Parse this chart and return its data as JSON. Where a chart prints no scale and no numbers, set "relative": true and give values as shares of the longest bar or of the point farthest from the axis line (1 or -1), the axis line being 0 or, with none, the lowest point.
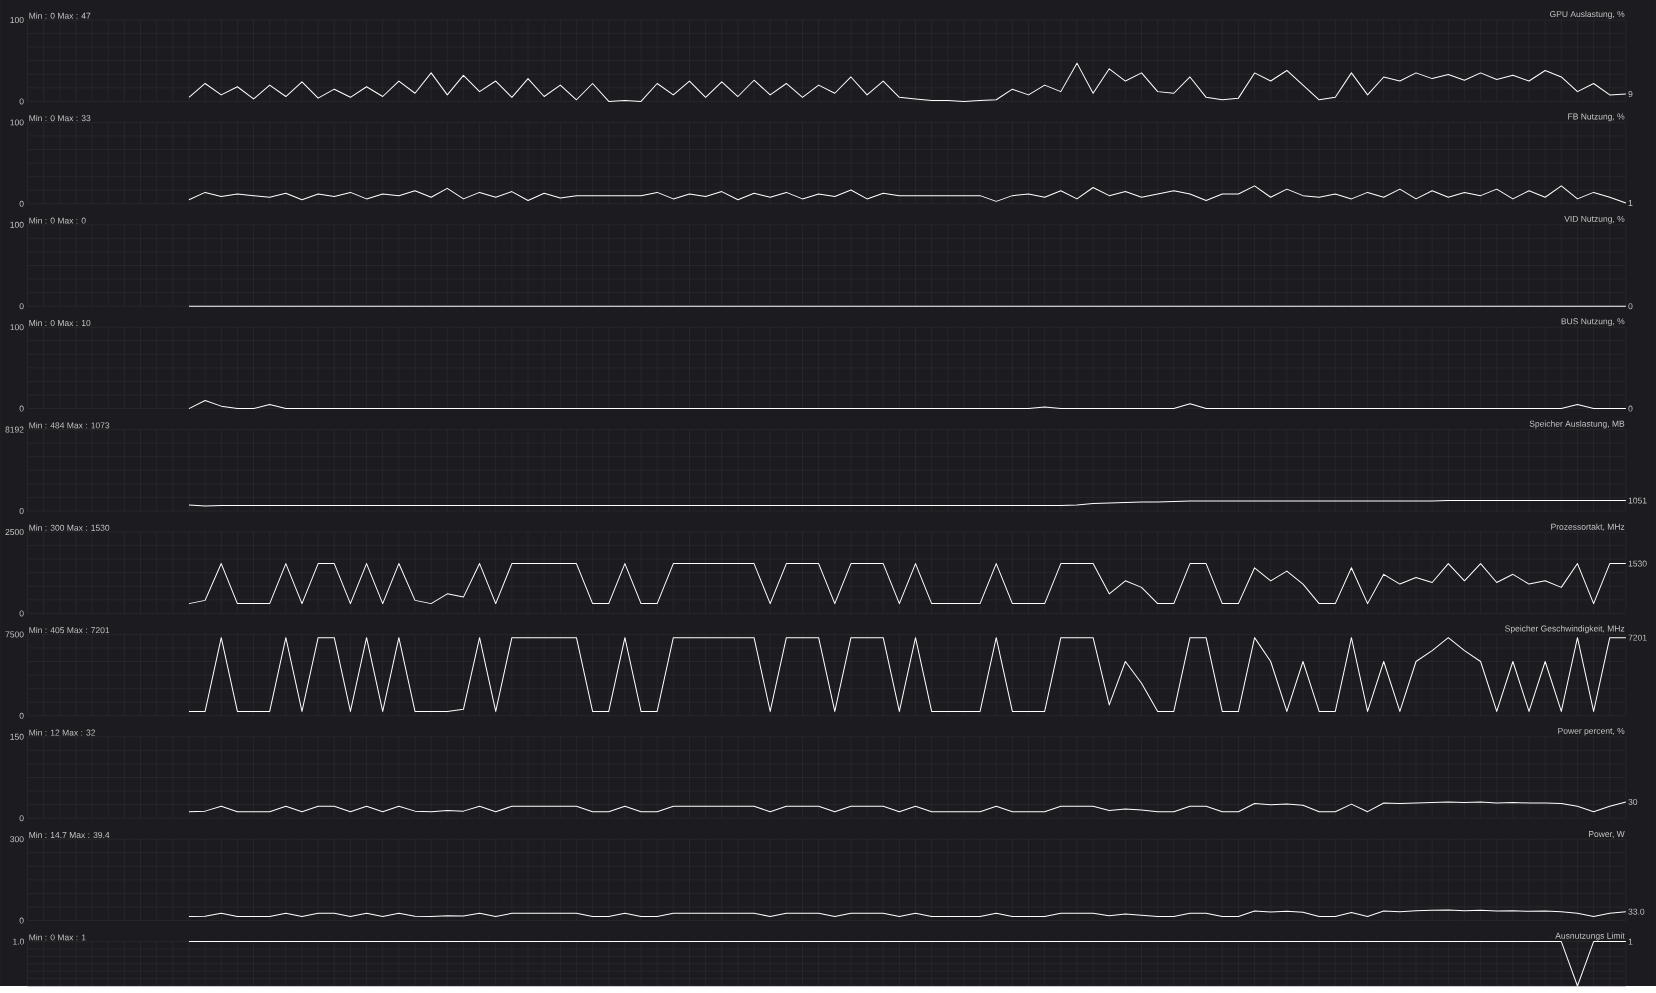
{
  "chart_data": [
    {
      "type": "line",
      "title": "GPU Auslastung, %",
      "color": "#ffffff",
      "ylim": [
        0,
        100
      ],
      "yticks": [
        0,
        100
      ],
      "grid": true,
      "tick_labels": "y",
      "annotations": [
        "Min : 0 Max : 47",
        "9"
      ],
      "categories": [
        null,
        null,
        null,
        null,
        null,
        null,
        null,
        null,
        null,
        null,
        null,
        null,
        null,
        null,
        null,
        null,
        null,
        null,
        null,
        null,
        null,
        null,
        null,
        null,
        null,
        null,
        null,
        null,
        null,
        null,
        null,
        null,
        null,
        null,
        null,
        null,
        null,
        null,
        null,
        null,
        null,
        null,
        null,
        null,
        null,
        null,
        null,
        null,
        null,
        null,
        null,
        null,
        null,
        null,
        null,
        null,
        null,
        null,
        null,
        null,
        null,
        null,
        null,
        null,
        null,
        null,
        null,
        null,
        null,
        null,
        null,
        null,
        null,
        null,
        null,
        null,
        null,
        null,
        null,
        null,
        null,
        null,
        null,
        null,
        null,
        null,
        null,
        null,
        null,
        null,
        null,
        null,
        null,
        null,
        null,
        null,
        null,
        null,
        null,
        null
      ],
      "values": [
        null,
        null,
        null,
        null,
        null,
        null,
        null,
        null,
        null,
        null,
        5,
        22,
        8,
        18,
        3,
        20,
        6,
        24,
        4,
        15,
        5,
        18,
        6,
        25,
        10,
        35,
        8,
        32,
        12,
        25,
        5,
        28,
        6,
        20,
        2,
        22,
        0,
        1,
        0,
        22,
        8,
        25,
        5,
        24,
        6,
        26,
        8,
        22,
        5,
        20,
        10,
        30,
        8,
        25,
        5,
        3,
        1,
        1,
        0,
        1,
        2,
        15,
        8,
        20,
        12,
        47,
        10,
        40,
        25,
        35,
        12,
        10,
        30,
        5,
        2,
        4,
        35,
        25,
        38,
        20,
        2,
        5,
        35,
        8,
        30,
        25,
        35,
        28,
        33,
        26,
        35,
        27,
        32,
        25,
        38,
        30,
        12,
        22,
        8,
        9
      ]
    },
    {
      "type": "line",
      "title": "FB Nutzung, %",
      "color": "#ffffff",
      "ylim": [
        0,
        100
      ],
      "yticks": [
        0,
        100
      ],
      "grid": true,
      "tick_labels": "y",
      "annotations": [
        "Min : 0 Max : 33",
        "1"
      ],
      "categories": [
        null,
        null,
        null,
        null,
        null,
        null,
        null,
        null,
        null,
        null,
        null,
        null,
        null,
        null,
        null,
        null,
        null,
        null,
        null,
        null,
        null,
        null,
        null,
        null,
        null,
        null,
        null,
        null,
        null,
        null,
        null,
        null,
        null,
        null,
        null,
        null,
        null,
        null,
        null,
        null,
        null,
        null,
        null,
        null,
        null,
        null,
        null,
        null,
        null,
        null,
        null,
        null,
        null,
        null,
        null,
        null,
        null,
        null,
        null,
        null,
        null,
        null,
        null,
        null,
        null,
        null,
        null,
        null,
        null,
        null,
        null,
        null,
        null,
        null,
        null,
        null,
        null,
        null,
        null,
        null,
        null,
        null,
        null,
        null,
        null,
        null,
        null,
        null,
        null,
        null,
        null,
        null,
        null,
        null,
        null,
        null,
        null,
        null,
        null,
        null
      ],
      "values": [
        null,
        null,
        null,
        null,
        null,
        null,
        null,
        null,
        null,
        null,
        5,
        14,
        9,
        12,
        10,
        8,
        13,
        5,
        12,
        9,
        14,
        6,
        12,
        10,
        16,
        8,
        19,
        6,
        14,
        8,
        15,
        4,
        13,
        7,
        10,
        10,
        10,
        10,
        10,
        14,
        6,
        12,
        9,
        15,
        5,
        13,
        8,
        14,
        6,
        12,
        9,
        17,
        6,
        13,
        10,
        10,
        10,
        10,
        10,
        10,
        3,
        10,
        12,
        8,
        16,
        6,
        20,
        10,
        15,
        8,
        12,
        16,
        12,
        4,
        12,
        12,
        22,
        8,
        18,
        10,
        8,
        12,
        6,
        14,
        8,
        18,
        6,
        16,
        8,
        14,
        10,
        18,
        6,
        16,
        8,
        22,
        6,
        14,
        8,
        1
      ]
    },
    {
      "type": "line",
      "title": "VID Nutzung, %",
      "color": "#ffffff",
      "ylim": [
        0,
        100
      ],
      "yticks": [
        0,
        100
      ],
      "grid": true,
      "tick_labels": "y",
      "annotations": [
        "Min : 0 Max : 0",
        "0"
      ],
      "categories": [
        null,
        null,
        null,
        null,
        null,
        null,
        null,
        null,
        null,
        null,
        null,
        null,
        null,
        null,
        null,
        null,
        null,
        null,
        null,
        null,
        null,
        null,
        null,
        null,
        null,
        null,
        null,
        null,
        null,
        null,
        null,
        null,
        null,
        null,
        null,
        null,
        null,
        null,
        null,
        null,
        null,
        null,
        null,
        null,
        null,
        null,
        null,
        null,
        null,
        null,
        null,
        null,
        null,
        null,
        null,
        null,
        null,
        null,
        null,
        null,
        null,
        null,
        null,
        null,
        null,
        null,
        null,
        null,
        null,
        null,
        null,
        null,
        null,
        null,
        null,
        null,
        null,
        null,
        null,
        null,
        null,
        null,
        null,
        null,
        null,
        null,
        null,
        null,
        null,
        null,
        null,
        null,
        null,
        null,
        null,
        null,
        null,
        null,
        null,
        null
      ],
      "values": [
        null,
        null,
        null,
        null,
        null,
        null,
        null,
        null,
        null,
        null,
        0,
        0,
        0,
        0,
        0,
        0,
        0,
        0,
        0,
        0,
        0,
        0,
        0,
        0,
        0,
        0,
        0,
        0,
        0,
        0,
        0,
        0,
        0,
        0,
        0,
        0,
        0,
        0,
        0,
        0,
        0,
        0,
        0,
        0,
        0,
        0,
        0,
        0,
        0,
        0,
        0,
        0,
        0,
        0,
        0,
        0,
        0,
        0,
        0,
        0,
        0,
        0,
        0,
        0,
        0,
        0,
        0,
        0,
        0,
        0,
        0,
        0,
        0,
        0,
        0,
        0,
        0,
        0,
        0,
        0,
        0,
        0,
        0,
        0,
        0,
        0,
        0,
        0,
        0,
        0,
        0,
        0,
        0,
        0,
        0,
        0,
        0,
        0,
        0,
        0
      ]
    },
    {
      "type": "line",
      "title": "BUS Nutzung, %",
      "color": "#ffffff",
      "ylim": [
        0,
        100
      ],
      "yticks": [
        0,
        100
      ],
      "grid": true,
      "tick_labels": "y",
      "annotations": [
        "Min : 0 Max : 10",
        "0"
      ],
      "categories": [
        null,
        null,
        null,
        null,
        null,
        null,
        null,
        null,
        null,
        null,
        null,
        null,
        null,
        null,
        null,
        null,
        null,
        null,
        null,
        null,
        null,
        null,
        null,
        null,
        null,
        null,
        null,
        null,
        null,
        null,
        null,
        null,
        null,
        null,
        null,
        null,
        null,
        null,
        null,
        null,
        null,
        null,
        null,
        null,
        null,
        null,
        null,
        null,
        null,
        null,
        null,
        null,
        null,
        null,
        null,
        null,
        null,
        null,
        null,
        null,
        null,
        null,
        null,
        null,
        null,
        null,
        null,
        null,
        null,
        null,
        null,
        null,
        null,
        null,
        null,
        null,
        null,
        null,
        null,
        null,
        null,
        null,
        null,
        null,
        null,
        null,
        null,
        null,
        null,
        null,
        null,
        null,
        null,
        null,
        null,
        null,
        null,
        null,
        null,
        null
      ],
      "values": [
        null,
        null,
        null,
        null,
        null,
        null,
        null,
        null,
        null,
        null,
        0,
        10,
        3,
        0,
        0,
        5,
        0,
        0,
        0,
        0,
        0,
        0,
        0,
        0,
        0,
        0,
        0,
        0,
        0,
        0,
        0,
        0,
        0,
        0,
        0,
        0,
        0,
        0,
        0,
        0,
        0,
        0,
        0,
        0,
        0,
        0,
        0,
        0,
        0,
        0,
        0,
        0,
        0,
        0,
        0,
        0,
        0,
        0,
        0,
        0,
        0,
        0,
        0,
        2,
        0,
        0,
        0,
        0,
        0,
        0,
        0,
        0,
        6,
        0,
        0,
        0,
        0,
        0,
        0,
        0,
        0,
        0,
        0,
        0,
        0,
        0,
        0,
        0,
        0,
        0,
        0,
        0,
        0,
        0,
        0,
        0,
        5,
        0,
        0,
        0
      ]
    },
    {
      "type": "line",
      "title": "Speicher Auslastung, MB",
      "color": "#ffffff",
      "ylim": [
        0,
        8192
      ],
      "yticks": [
        0,
        8192
      ],
      "grid": true,
      "tick_labels": "y",
      "annotations": [
        "Min : 484 Max : 1073",
        "1051"
      ],
      "categories": [
        null,
        null,
        null,
        null,
        null,
        null,
        null,
        null,
        null,
        null,
        null,
        null,
        null,
        null,
        null,
        null,
        null,
        null,
        null,
        null,
        null,
        null,
        null,
        null,
        null,
        null,
        null,
        null,
        null,
        null,
        null,
        null,
        null,
        null,
        null,
        null,
        null,
        null,
        null,
        null,
        null,
        null,
        null,
        null,
        null,
        null,
        null,
        null,
        null,
        null,
        null,
        null,
        null,
        null,
        null,
        null,
        null,
        null,
        null,
        null,
        null,
        null,
        null,
        null,
        null,
        null,
        null,
        null,
        null,
        null,
        null,
        null,
        null,
        null,
        null,
        null,
        null,
        null,
        null,
        null,
        null,
        null,
        null,
        null,
        null,
        null,
        null,
        null,
        null,
        null,
        null,
        null,
        null,
        null,
        null,
        null,
        null,
        null,
        null,
        null
      ],
      "values": [
        null,
        null,
        null,
        null,
        null,
        null,
        null,
        null,
        null,
        null,
        600,
        500,
        550,
        550,
        550,
        550,
        550,
        550,
        550,
        550,
        550,
        550,
        550,
        550,
        550,
        550,
        550,
        550,
        550,
        550,
        550,
        550,
        550,
        550,
        550,
        550,
        550,
        550,
        550,
        550,
        550,
        550,
        550,
        550,
        550,
        550,
        550,
        550,
        550,
        550,
        550,
        550,
        550,
        550,
        550,
        550,
        550,
        550,
        550,
        550,
        550,
        550,
        550,
        550,
        550,
        600,
        750,
        800,
        850,
        900,
        900,
        950,
        1000,
        1000,
        1000,
        1000,
        1000,
        1000,
        1000,
        1000,
        1000,
        1000,
        1000,
        1000,
        1000,
        1000,
        1000,
        1000,
        1050,
        1050,
        1050,
        1050,
        1050,
        1050,
        1050,
        1050,
        1050,
        1050,
        1050,
        1051
      ]
    },
    {
      "type": "line",
      "title": "Prozessortakt, MHz",
      "color": "#ffffff",
      "ylim": [
        0,
        2500
      ],
      "yticks": [
        0,
        2500
      ],
      "grid": true,
      "tick_labels": "y",
      "annotations": [
        "Min : 300 Max : 1530",
        "1530"
      ],
      "categories": [
        null,
        null,
        null,
        null,
        null,
        null,
        null,
        null,
        null,
        null,
        null,
        null,
        null,
        null,
        null,
        null,
        null,
        null,
        null,
        null,
        null,
        null,
        null,
        null,
        null,
        null,
        null,
        null,
        null,
        null,
        null,
        null,
        null,
        null,
        null,
        null,
        null,
        null,
        null,
        null,
        null,
        null,
        null,
        null,
        null,
        null,
        null,
        null,
        null,
        null,
        null,
        null,
        null,
        null,
        null,
        null,
        null,
        null,
        null,
        null,
        null,
        null,
        null,
        null,
        null,
        null,
        null,
        null,
        null,
        null,
        null,
        null,
        null,
        null,
        null,
        null,
        null,
        null,
        null,
        null,
        null,
        null,
        null,
        null,
        null,
        null,
        null,
        null,
        null,
        null,
        null,
        null,
        null,
        null,
        null,
        null,
        null,
        null,
        null,
        null
      ],
      "values": [
        null,
        null,
        null,
        null,
        null,
        null,
        null,
        null,
        null,
        null,
        300,
        400,
        1530,
        300,
        300,
        300,
        1530,
        300,
        1530,
        1530,
        300,
        1530,
        300,
        1530,
        400,
        300,
        600,
        500,
        1530,
        300,
        1530,
        1530,
        1530,
        1530,
        1530,
        300,
        300,
        1530,
        300,
        300,
        1530,
        1530,
        1530,
        1530,
        1530,
        1530,
        300,
        1530,
        1530,
        1530,
        300,
        1530,
        1530,
        1530,
        300,
        1530,
        300,
        300,
        300,
        300,
        1530,
        300,
        300,
        300,
        1530,
        1530,
        1530,
        600,
        1000,
        800,
        300,
        300,
        1530,
        1530,
        300,
        300,
        1400,
        1000,
        1300,
        900,
        300,
        300,
        1400,
        300,
        1200,
        900,
        1100,
        950,
        1530,
        1000,
        1530,
        950,
        1200,
        900,
        1000,
        800,
        1530,
        300,
        1530,
        1530
      ]
    },
    {
      "type": "line",
      "title": "Speicher Geschwindigkeit, MHz",
      "color": "#ffffff",
      "ylim": [
        0,
        7500
      ],
      "yticks": [
        0,
        7500
      ],
      "grid": true,
      "tick_labels": "y",
      "annotations": [
        "Min : 405 Max : 7201",
        "7201"
      ],
      "categories": [
        null,
        null,
        null,
        null,
        null,
        null,
        null,
        null,
        null,
        null,
        null,
        null,
        null,
        null,
        null,
        null,
        null,
        null,
        null,
        null,
        null,
        null,
        null,
        null,
        null,
        null,
        null,
        null,
        null,
        null,
        null,
        null,
        null,
        null,
        null,
        null,
        null,
        null,
        null,
        null,
        null,
        null,
        null,
        null,
        null,
        null,
        null,
        null,
        null,
        null,
        null,
        null,
        null,
        null,
        null,
        null,
        null,
        null,
        null,
        null,
        null,
        null,
        null,
        null,
        null,
        null,
        null,
        null,
        null,
        null,
        null,
        null,
        null,
        null,
        null,
        null,
        null,
        null,
        null,
        null,
        null,
        null,
        null,
        null,
        null,
        null,
        null,
        null,
        null,
        null,
        null,
        null,
        null,
        null,
        null,
        null,
        null,
        null,
        null,
        null
      ],
      "values": [
        null,
        null,
        null,
        null,
        null,
        null,
        null,
        null,
        null,
        null,
        400,
        400,
        7200,
        400,
        400,
        400,
        7200,
        400,
        7200,
        7200,
        400,
        7200,
        400,
        7200,
        400,
        400,
        400,
        600,
        7200,
        400,
        7200,
        7200,
        7200,
        7200,
        7200,
        400,
        400,
        7200,
        400,
        400,
        7200,
        7200,
        7200,
        7200,
        7200,
        7200,
        400,
        7200,
        7200,
        7200,
        400,
        7200,
        7200,
        7200,
        400,
        7200,
        400,
        400,
        400,
        400,
        7200,
        400,
        400,
        400,
        7200,
        7200,
        7200,
        1000,
        5000,
        3000,
        400,
        400,
        7200,
        7200,
        400,
        400,
        7200,
        5000,
        400,
        5000,
        400,
        400,
        7200,
        400,
        5000,
        400,
        5000,
        6000,
        7200,
        6000,
        5000,
        400,
        5000,
        400,
        5000,
        400,
        7200,
        400,
        7200,
        7201
      ]
    },
    {
      "type": "line",
      "title": "Power percent, %",
      "color": "#ffffff",
      "ylim": [
        0,
        150
      ],
      "yticks": [
        0,
        150
      ],
      "grid": true,
      "tick_labels": "y",
      "annotations": [
        "Min : 12 Max : 32",
        "30"
      ],
      "categories": [
        null,
        null,
        null,
        null,
        null,
        null,
        null,
        null,
        null,
        null,
        null,
        null,
        null,
        null,
        null,
        null,
        null,
        null,
        null,
        null,
        null,
        null,
        null,
        null,
        null,
        null,
        null,
        null,
        null,
        null,
        null,
        null,
        null,
        null,
        null,
        null,
        null,
        null,
        null,
        null,
        null,
        null,
        null,
        null,
        null,
        null,
        null,
        null,
        null,
        null,
        null,
        null,
        null,
        null,
        null,
        null,
        null,
        null,
        null,
        null,
        null,
        null,
        null,
        null,
        null,
        null,
        null,
        null,
        null,
        null,
        null,
        null,
        null,
        null,
        null,
        null,
        null,
        null,
        null,
        null,
        null,
        null,
        null,
        null,
        null,
        null,
        null,
        null,
        null,
        null,
        null,
        null,
        null,
        null,
        null,
        null,
        null,
        null,
        null,
        null
      ],
      "values": [
        null,
        null,
        null,
        null,
        null,
        null,
        null,
        null,
        null,
        null,
        12,
        13,
        22,
        12,
        12,
        12,
        22,
        12,
        22,
        22,
        12,
        22,
        12,
        22,
        13,
        12,
        14,
        13,
        22,
        12,
        22,
        22,
        22,
        22,
        22,
        12,
        12,
        22,
        12,
        12,
        22,
        22,
        22,
        22,
        22,
        22,
        12,
        22,
        22,
        22,
        12,
        22,
        22,
        22,
        12,
        22,
        12,
        12,
        12,
        12,
        22,
        12,
        12,
        12,
        22,
        22,
        22,
        14,
        17,
        15,
        12,
        12,
        22,
        22,
        12,
        12,
        27,
        25,
        26,
        24,
        12,
        12,
        26,
        12,
        28,
        27,
        28,
        29,
        30,
        29,
        30,
        28,
        29,
        28,
        28,
        27,
        22,
        12,
        22,
        30
      ]
    },
    {
      "type": "line",
      "title": "Power, W",
      "color": "#ffffff",
      "ylim": [
        0,
        300
      ],
      "yticks": [
        0,
        300
      ],
      "grid": true,
      "tick_labels": "y",
      "annotations": [
        "Min : 14.7 Max : 39.4",
        "33.0"
      ],
      "categories": [
        null,
        null,
        null,
        null,
        null,
        null,
        null,
        null,
        null,
        null,
        null,
        null,
        null,
        null,
        null,
        null,
        null,
        null,
        null,
        null,
        null,
        null,
        null,
        null,
        null,
        null,
        null,
        null,
        null,
        null,
        null,
        null,
        null,
        null,
        null,
        null,
        null,
        null,
        null,
        null,
        null,
        null,
        null,
        null,
        null,
        null,
        null,
        null,
        null,
        null,
        null,
        null,
        null,
        null,
        null,
        null,
        null,
        null,
        null,
        null,
        null,
        null,
        null,
        null,
        null,
        null,
        null,
        null,
        null,
        null,
        null,
        null,
        null,
        null,
        null,
        null,
        null,
        null,
        null,
        null,
        null,
        null,
        null,
        null,
        null,
        null,
        null,
        null,
        null,
        null,
        null,
        null,
        null,
        null,
        null,
        null,
        null,
        null,
        null,
        null
      ],
      "values": [
        null,
        null,
        null,
        null,
        null,
        null,
        null,
        null,
        null,
        null,
        15,
        16,
        27,
        15,
        15,
        15,
        27,
        15,
        27,
        27,
        15,
        27,
        15,
        27,
        16,
        15,
        18,
        17,
        27,
        15,
        27,
        27,
        27,
        27,
        27,
        15,
        15,
        27,
        15,
        15,
        27,
        27,
        27,
        27,
        27,
        27,
        15,
        27,
        27,
        27,
        15,
        27,
        27,
        27,
        15,
        27,
        15,
        15,
        15,
        15,
        27,
        15,
        15,
        15,
        27,
        27,
        27,
        18,
        24,
        20,
        15,
        15,
        27,
        27,
        15,
        15,
        35,
        32,
        34,
        31,
        15,
        15,
        30,
        15,
        35,
        33,
        36,
        38,
        39,
        36,
        38,
        35,
        36,
        34,
        35,
        33,
        27,
        15,
        27,
        33
      ]
    },
    {
      "type": "line",
      "title": "Ausnutzungs Limit",
      "color": "#ffffff",
      "relative": true,
      "grid": true,
      "tick_labels": "y",
      "annotations": [
        "Min : 0 Max : 1",
        "1",
        "1.0"
      ],
      "categories": [
        null,
        null,
        null,
        null,
        null,
        null,
        null,
        null,
        null,
        null,
        null,
        null,
        null,
        null,
        null,
        null,
        null,
        null,
        null,
        null,
        null,
        null,
        null,
        null,
        null,
        null,
        null,
        null,
        null,
        null,
        null,
        null,
        null,
        null,
        null,
        null,
        null,
        null,
        null,
        null,
        null,
        null,
        null,
        null,
        null,
        null,
        null,
        null,
        null,
        null,
        null,
        null,
        null,
        null,
        null,
        null,
        null,
        null,
        null,
        null,
        null,
        null,
        null,
        null,
        null,
        null,
        null,
        null,
        null,
        null,
        null,
        null,
        null,
        null,
        null,
        null,
        null,
        null,
        null,
        null,
        null,
        null,
        null,
        null,
        null,
        null,
        null,
        null,
        null,
        null,
        null,
        null,
        null,
        null,
        null,
        null,
        null,
        null,
        null,
        null
      ],
      "values": [
        null,
        null,
        null,
        null,
        null,
        null,
        null,
        null,
        null,
        null,
        1,
        1,
        1,
        1,
        1,
        1,
        1,
        1,
        1,
        1,
        1,
        1,
        1,
        1,
        1,
        1,
        1,
        1,
        1,
        1,
        1,
        1,
        1,
        1,
        1,
        1,
        1,
        1,
        1,
        1,
        1,
        1,
        1,
        1,
        1,
        1,
        1,
        1,
        1,
        1,
        1,
        1,
        1,
        1,
        1,
        1,
        1,
        1,
        1,
        1,
        1,
        1,
        1,
        1,
        1,
        1,
        1,
        1,
        1,
        1,
        1,
        1,
        1,
        1,
        1,
        1,
        1,
        1,
        1,
        1,
        1,
        1,
        1,
        1,
        1,
        1,
        1,
        1,
        1,
        1,
        1,
        1,
        1,
        1,
        1,
        1,
        0,
        1,
        1,
        1
      ]
    }
  ]
}
